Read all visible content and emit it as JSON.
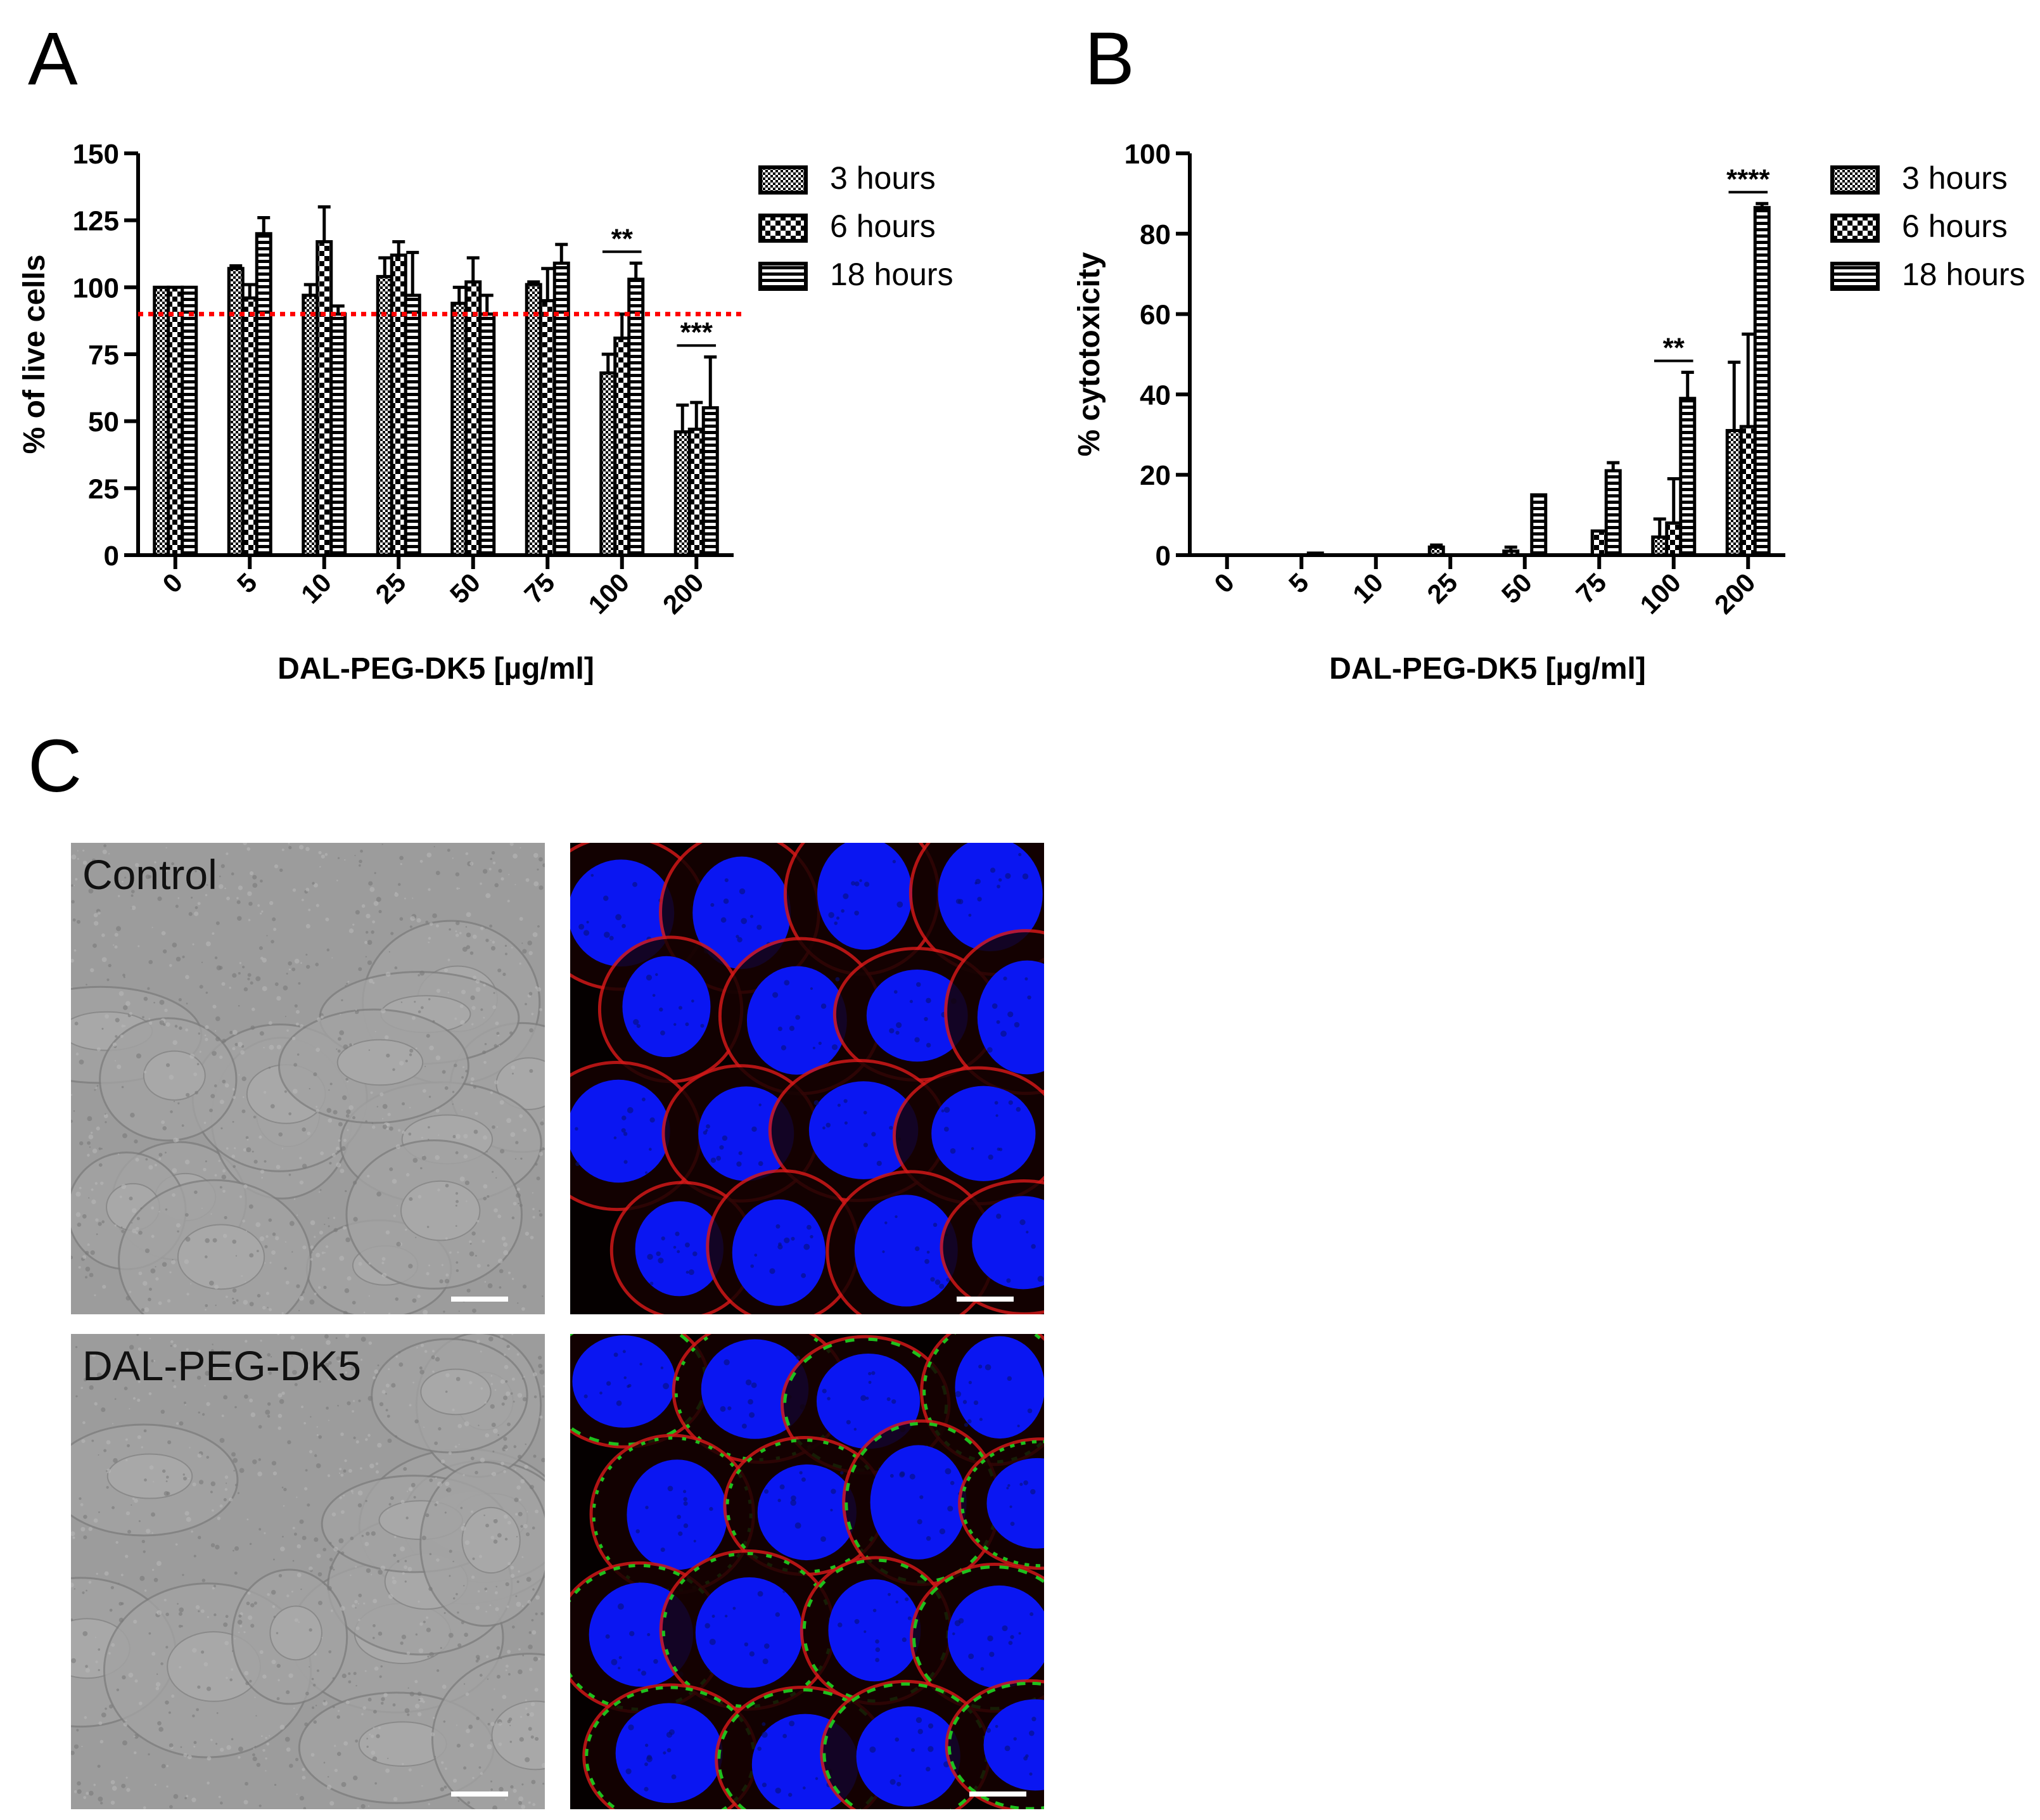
{
  "panels": {
    "a": "A",
    "b": "B",
    "c": "C"
  },
  "colors": {
    "bar_stroke": "#000000",
    "threshold": "#ff0000",
    "nuclei": "#0a16f2",
    "membrane": "#d01818",
    "green": "#1fd51f",
    "brightfield": "#9a9a9a"
  },
  "chart_data": [
    {
      "id": "A",
      "type": "bar",
      "title": "",
      "xlabel": "DAL-PEG-DK5 [µg/ml]",
      "ylabel": "% of live cells",
      "categories": [
        "0",
        "5",
        "10",
        "25",
        "50",
        "75",
        "100",
        "200"
      ],
      "ylim": [
        0,
        150
      ],
      "yticks": [
        "0",
        "25",
        "50",
        "75",
        "100",
        "125",
        "150"
      ],
      "threshold": 90,
      "series": [
        {
          "name": "3 hours",
          "pattern": "checker-fine",
          "values": [
            100,
            107,
            97,
            104,
            94,
            101,
            68,
            46
          ],
          "errors": [
            0,
            1,
            4,
            7,
            6,
            1,
            7,
            10
          ]
        },
        {
          "name": "6 hours",
          "pattern": "checker",
          "values": [
            100,
            96,
            117,
            112,
            102,
            95,
            81,
            47
          ],
          "errors": [
            0,
            5,
            13,
            5,
            9,
            12,
            9,
            10
          ]
        },
        {
          "name": "18 hours",
          "pattern": "stripes",
          "values": [
            100,
            120,
            90,
            97,
            90,
            109,
            103,
            55
          ],
          "errors": [
            0,
            6,
            3,
            16,
            7,
            7,
            6,
            19
          ]
        }
      ],
      "annotations": [
        {
          "text": "**",
          "category": "100"
        },
        {
          "text": "***",
          "category": "200"
        }
      ],
      "legend_position": "right"
    },
    {
      "id": "B",
      "type": "bar",
      "title": "",
      "xlabel": "DAL-PEG-DK5 [µg/ml]",
      "ylabel": "% cytotoxicity",
      "categories": [
        "0",
        "5",
        "10",
        "25",
        "50",
        "75",
        "100",
        "200"
      ],
      "ylim": [
        0,
        100
      ],
      "yticks": [
        "0",
        "20",
        "40",
        "60",
        "80",
        "100"
      ],
      "series": [
        {
          "name": "3 hours",
          "pattern": "checker-fine",
          "values": [
            0,
            0,
            0,
            2,
            1,
            0,
            4.5,
            31
          ],
          "errors": [
            0,
            0,
            0,
            0.5,
            1,
            0,
            4.5,
            17
          ]
        },
        {
          "name": "6 hours",
          "pattern": "checker",
          "values": [
            0,
            0,
            0,
            0,
            0,
            6,
            8,
            32
          ],
          "errors": [
            0,
            0,
            0,
            0,
            0,
            0,
            11,
            23
          ]
        },
        {
          "name": "18 hours",
          "pattern": "stripes",
          "values": [
            0,
            0.5,
            0,
            0,
            15,
            21,
            39,
            86.5
          ],
          "errors": [
            0,
            0,
            0,
            0,
            0,
            2,
            6.5,
            1
          ]
        }
      ],
      "annotations": [
        {
          "text": "**",
          "category": "100"
        },
        {
          "text": "****",
          "category": "200"
        }
      ],
      "legend_position": "right"
    }
  ],
  "micrographs": [
    {
      "label": "Control",
      "kind": "brightfield"
    },
    {
      "label": "",
      "kind": "fluorescence-control"
    },
    {
      "label": "DAL-PEG-DK5",
      "kind": "brightfield"
    },
    {
      "label": "",
      "kind": "fluorescence-treated"
    }
  ]
}
